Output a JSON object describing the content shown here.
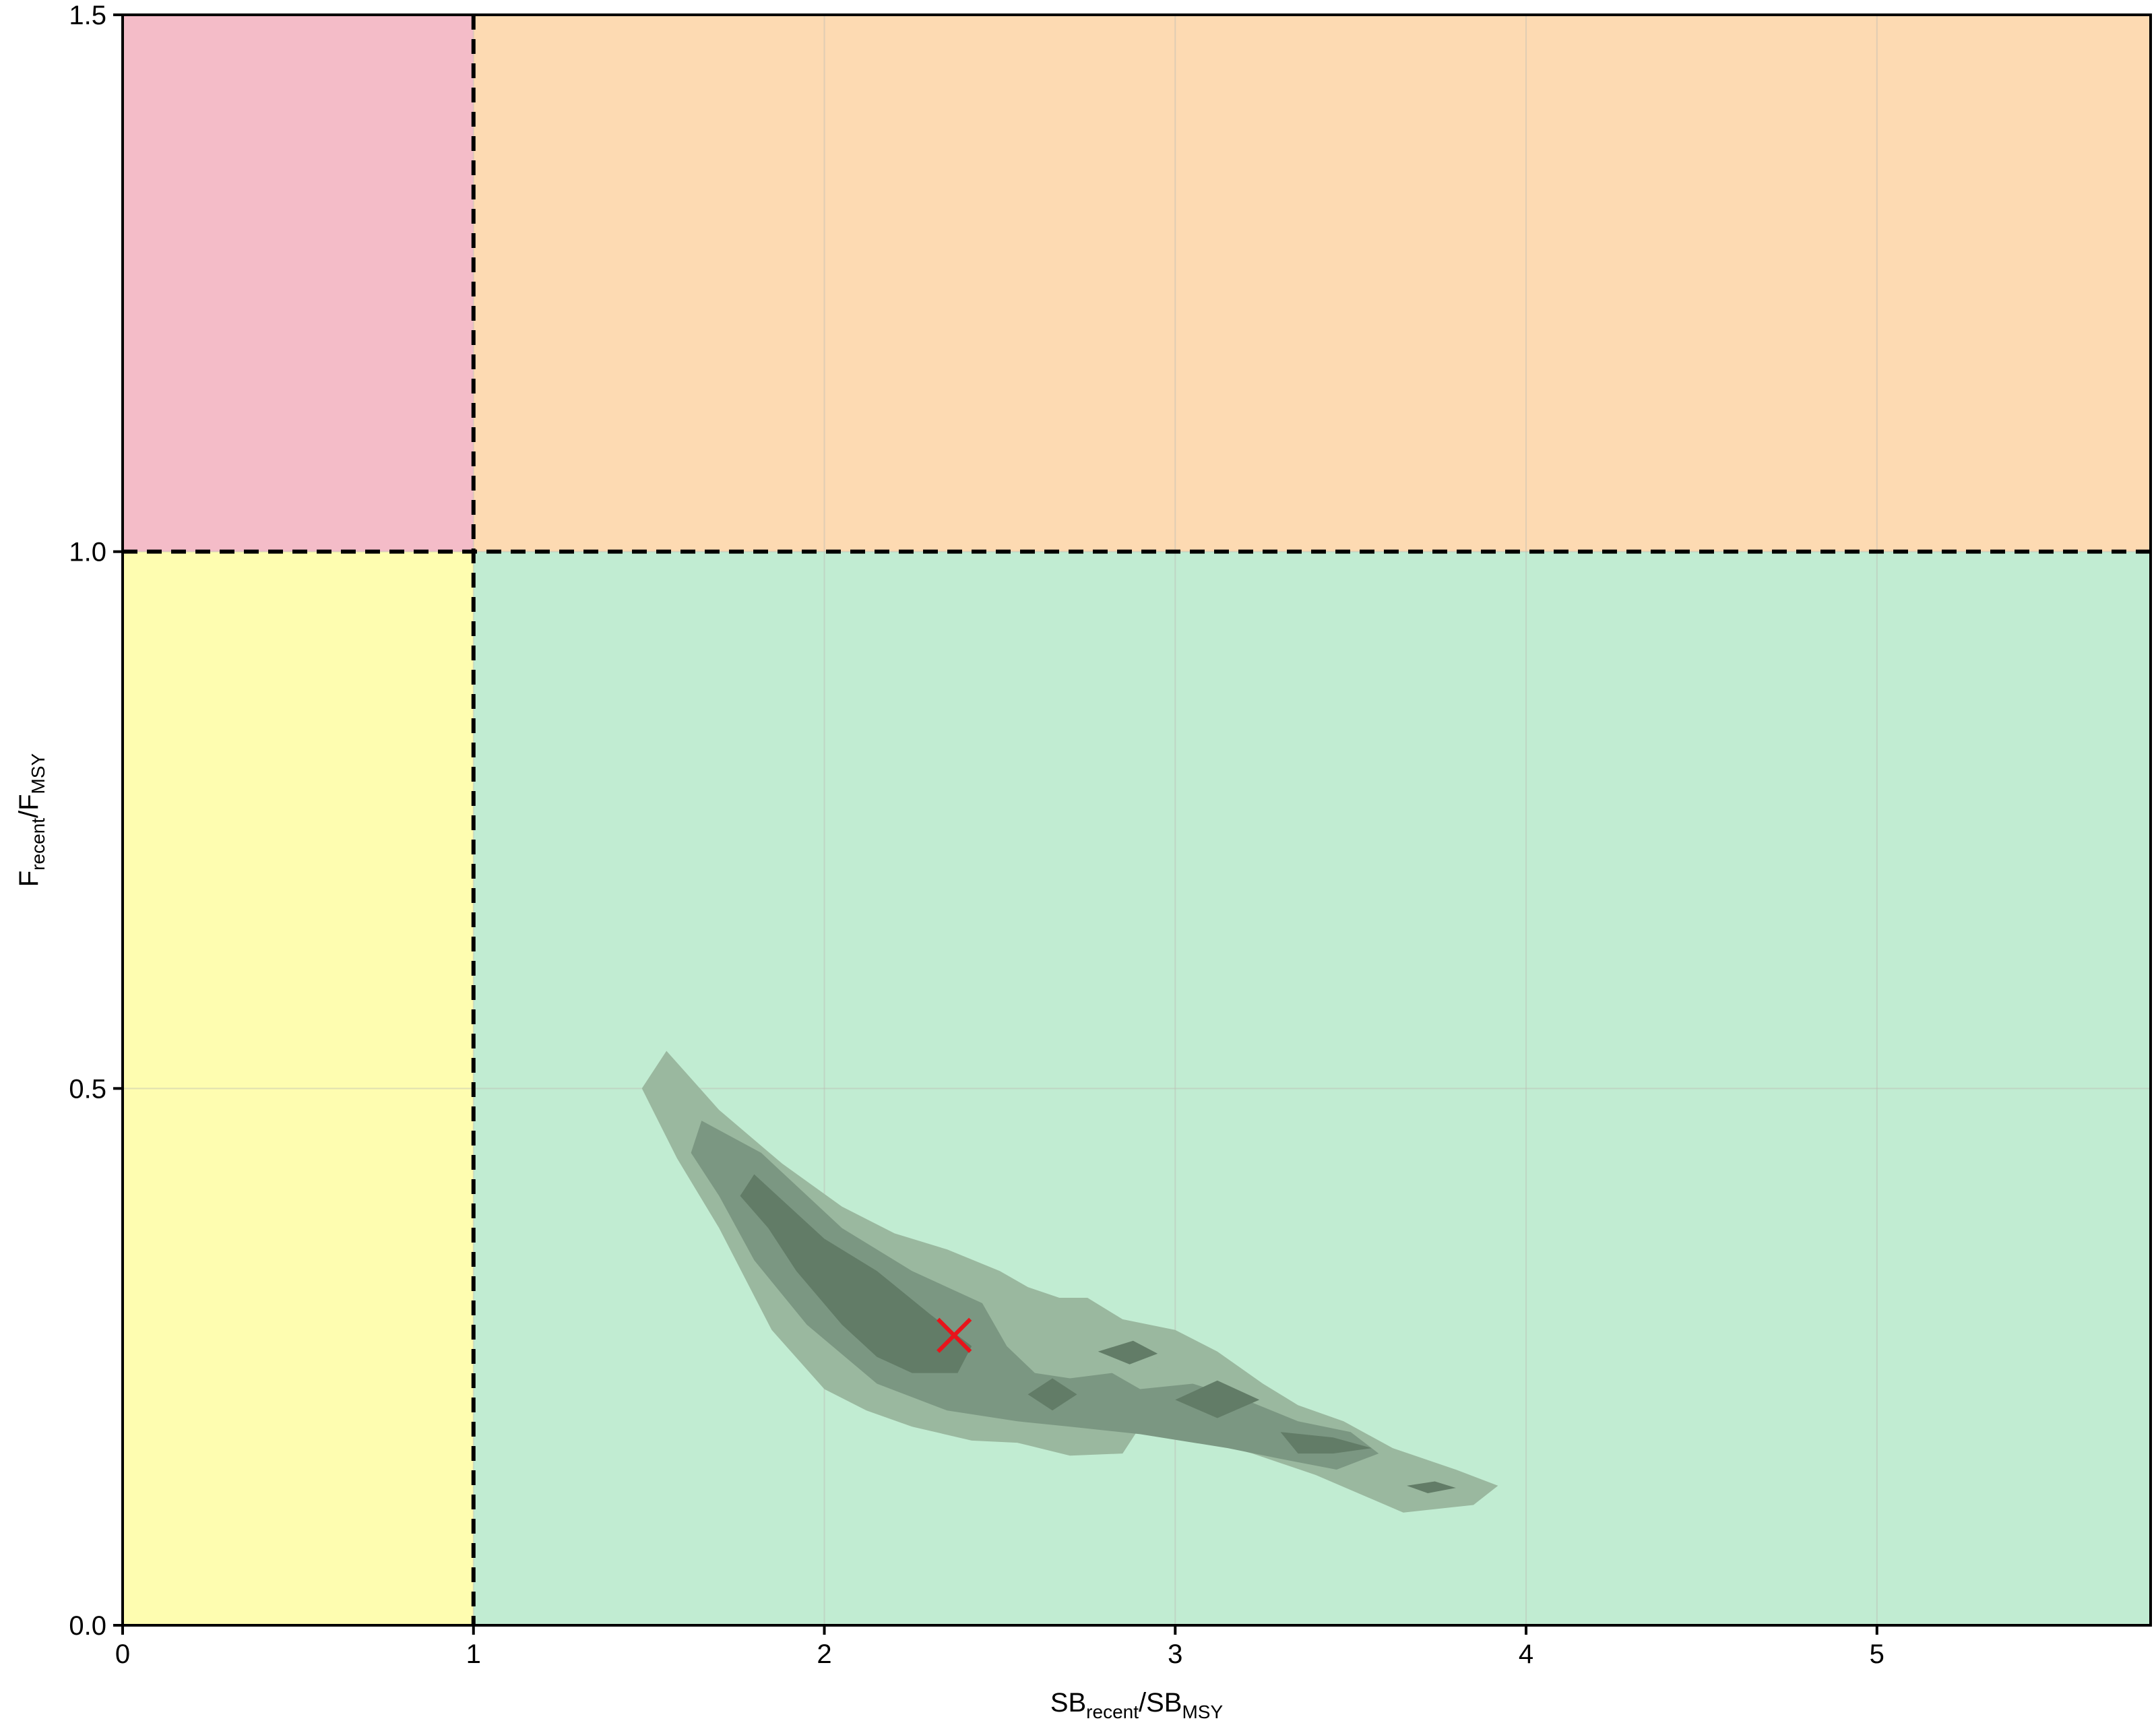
{
  "chart_data": {
    "type": "contour",
    "title": "",
    "xlabel": {
      "base1": "SB",
      "sub1": "recent",
      "slash": "/",
      "base2": "SB",
      "sub2": "MSY"
    },
    "ylabel": {
      "base1": "F",
      "sub1": "recent",
      "slash": "/",
      "base2": "F",
      "sub2": "MSY"
    },
    "xlim": [
      0,
      5.78
    ],
    "ylim": [
      0,
      1.5
    ],
    "xticks": [
      0,
      1,
      2,
      3,
      4,
      5
    ],
    "xtick_labels": [
      "0",
      "1",
      "2",
      "3",
      "4",
      "5"
    ],
    "yticks": [
      0.0,
      0.5,
      1.0,
      1.5
    ],
    "ytick_labels": [
      "0.0",
      "0.5",
      "1.0",
      "1.5"
    ],
    "grid": true,
    "reference_lines": {
      "x": 1.0,
      "y": 1.0,
      "style": "dashed"
    },
    "quadrants": [
      {
        "x": [
          0,
          1
        ],
        "y": [
          1,
          1.5
        ],
        "color": "#f4bcc8"
      },
      {
        "x": [
          1,
          5.78
        ],
        "y": [
          1,
          1.5
        ],
        "color": "#fddab2"
      },
      {
        "x": [
          0,
          1
        ],
        "y": [
          0,
          1
        ],
        "color": "#fefdb0"
      },
      {
        "x": [
          1,
          5.78
        ],
        "y": [
          0,
          1
        ],
        "color": "#c1ecd2"
      }
    ],
    "contour_levels": [
      {
        "level": 1,
        "color": "#9ab89f",
        "polygons": [
          [
            [
              1.55,
              0.535
            ],
            [
              1.7,
              0.48
            ],
            [
              1.88,
              0.43
            ],
            [
              2.05,
              0.39
            ],
            [
              2.2,
              0.365
            ],
            [
              2.35,
              0.35
            ],
            [
              2.5,
              0.33
            ],
            [
              2.58,
              0.315
            ],
            [
              2.67,
              0.305
            ],
            [
              2.75,
              0.305
            ],
            [
              2.85,
              0.285
            ],
            [
              3.0,
              0.275
            ],
            [
              3.12,
              0.255
            ],
            [
              3.25,
              0.225
            ],
            [
              3.35,
              0.205
            ],
            [
              3.48,
              0.19
            ],
            [
              3.62,
              0.165
            ],
            [
              3.8,
              0.145
            ],
            [
              3.92,
              0.13
            ],
            [
              3.85,
              0.112
            ],
            [
              3.65,
              0.105
            ],
            [
              3.4,
              0.14
            ],
            [
              3.22,
              0.16
            ],
            [
              3.05,
              0.175
            ],
            [
              2.9,
              0.185
            ],
            [
              2.85,
              0.16
            ],
            [
              2.7,
              0.158
            ],
            [
              2.55,
              0.17
            ],
            [
              2.42,
              0.172
            ],
            [
              2.25,
              0.185
            ],
            [
              2.12,
              0.2
            ],
            [
              2.0,
              0.22
            ],
            [
              1.85,
              0.275
            ],
            [
              1.7,
              0.37
            ],
            [
              1.58,
              0.435
            ],
            [
              1.48,
              0.5
            ]
          ],
          [
            [
              2.72,
              0.24
            ],
            [
              2.88,
              0.245
            ],
            [
              3.02,
              0.235
            ],
            [
              2.96,
              0.215
            ],
            [
              2.88,
              0.205
            ],
            [
              2.78,
              0.225
            ]
          ]
        ]
      },
      {
        "level": 2,
        "color": "#7b9782",
        "polygons": [
          [
            [
              1.65,
              0.47
            ],
            [
              1.82,
              0.44
            ],
            [
              2.05,
              0.37
            ],
            [
              2.25,
              0.33
            ],
            [
              2.45,
              0.3
            ],
            [
              2.52,
              0.26
            ],
            [
              2.6,
              0.235
            ],
            [
              2.7,
              0.23
            ],
            [
              2.82,
              0.235
            ],
            [
              2.9,
              0.22
            ],
            [
              3.05,
              0.225
            ],
            [
              3.2,
              0.21
            ],
            [
              3.35,
              0.19
            ],
            [
              3.5,
              0.18
            ],
            [
              3.58,
              0.16
            ],
            [
              3.46,
              0.145
            ],
            [
              3.3,
              0.155
            ],
            [
              3.15,
              0.165
            ],
            [
              2.9,
              0.178
            ],
            [
              2.7,
              0.185
            ],
            [
              2.55,
              0.19
            ],
            [
              2.35,
              0.2
            ],
            [
              2.15,
              0.225
            ],
            [
              1.95,
              0.28
            ],
            [
              1.8,
              0.34
            ],
            [
              1.7,
              0.4
            ],
            [
              1.62,
              0.44
            ]
          ]
        ]
      },
      {
        "level": 3,
        "color": "#627c67",
        "polygons": [
          [
            [
              1.8,
              0.42
            ],
            [
              2.0,
              0.36
            ],
            [
              2.15,
              0.33
            ],
            [
              2.3,
              0.29
            ],
            [
              2.42,
              0.26
            ],
            [
              2.38,
              0.235
            ],
            [
              2.25,
              0.235
            ],
            [
              2.15,
              0.25
            ],
            [
              2.05,
              0.28
            ],
            [
              1.92,
              0.33
            ],
            [
              1.84,
              0.37
            ],
            [
              1.76,
              0.4
            ]
          ],
          [
            [
              2.58,
              0.215
            ],
            [
              2.65,
              0.23
            ],
            [
              2.72,
              0.215
            ],
            [
              2.65,
              0.2
            ]
          ],
          [
            [
              2.78,
              0.255
            ],
            [
              2.88,
              0.265
            ],
            [
              2.95,
              0.253
            ],
            [
              2.87,
              0.243
            ]
          ],
          [
            [
              3.0,
              0.21
            ],
            [
              3.12,
              0.228
            ],
            [
              3.24,
              0.21
            ],
            [
              3.12,
              0.193
            ]
          ],
          [
            [
              3.3,
              0.18
            ],
            [
              3.45,
              0.175
            ],
            [
              3.56,
              0.165
            ],
            [
              3.45,
              0.16
            ],
            [
              3.35,
              0.16
            ]
          ],
          [
            [
              3.66,
              0.13
            ],
            [
              3.74,
              0.134
            ],
            [
              3.8,
              0.128
            ],
            [
              3.72,
              0.123
            ]
          ]
        ]
      }
    ],
    "point_estimate": {
      "x": 2.37,
      "y": 0.27,
      "marker": "x",
      "color": "#e8141b"
    }
  }
}
